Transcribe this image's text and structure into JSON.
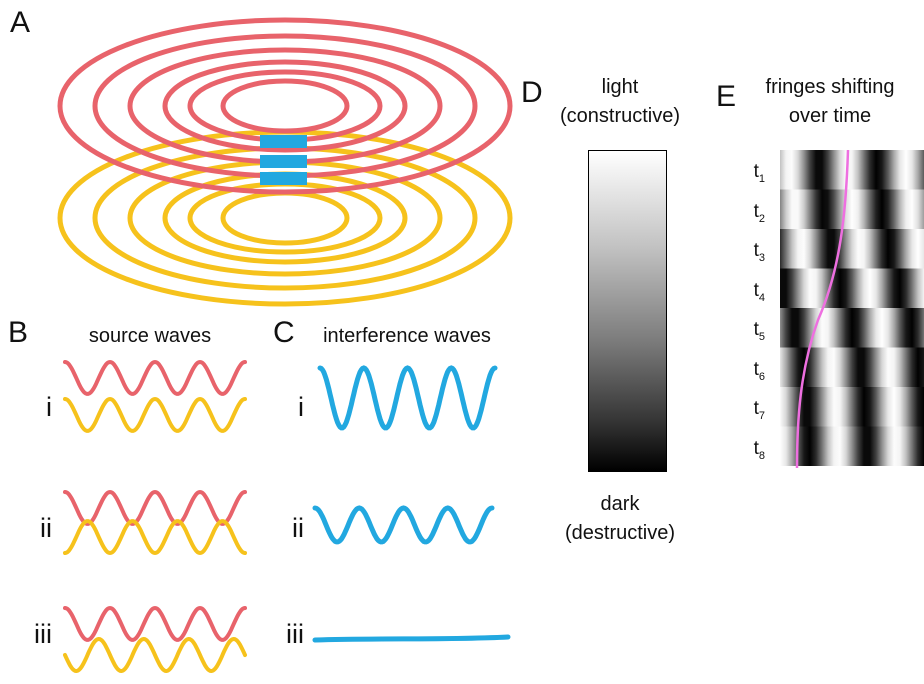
{
  "panels": {
    "A": {
      "letter": "A"
    },
    "B": {
      "letter": "B",
      "title": "source waves",
      "rows": [
        "i",
        "ii",
        "iii"
      ]
    },
    "C": {
      "letter": "C",
      "title": "interference waves",
      "rows": [
        "i",
        "ii",
        "iii"
      ]
    },
    "D": {
      "letter": "D",
      "top_line1": "light",
      "top_line2": "(constructive)",
      "bottom_line1": "dark",
      "bottom_line2": "(destructive)"
    },
    "E": {
      "letter": "E",
      "title_line1": "fringes shifting",
      "title_line2": "over time",
      "time_labels": [
        {
          "base": "t",
          "sub": "1"
        },
        {
          "base": "t",
          "sub": "2"
        },
        {
          "base": "t",
          "sub": "3"
        },
        {
          "base": "t",
          "sub": "4"
        },
        {
          "base": "t",
          "sub": "5"
        },
        {
          "base": "t",
          "sub": "6"
        },
        {
          "base": "t",
          "sub": "7"
        },
        {
          "base": "t",
          "sub": "8"
        }
      ]
    }
  },
  "colors": {
    "red_wave": "#e8636b",
    "yellow_wave": "#f6c21c",
    "blue": "#22a8e0",
    "magenta_trace": "#ee6fe0"
  }
}
